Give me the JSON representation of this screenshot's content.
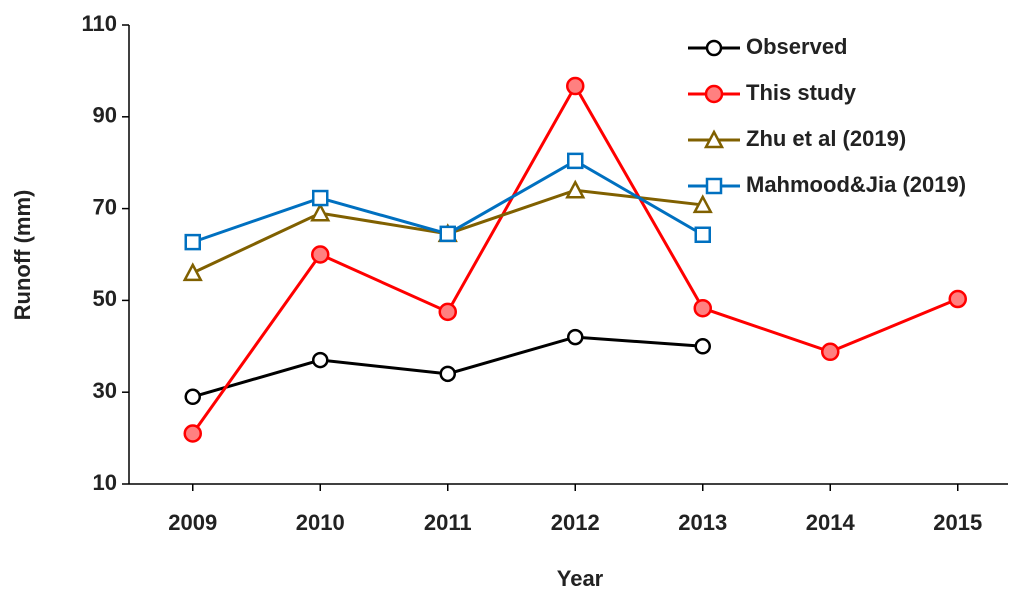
{
  "chart_data": {
    "type": "line",
    "x_label": "Year",
    "y_label": "Runoff (mm)",
    "categories": [
      "2009",
      "2010",
      "2011",
      "2012",
      "2013",
      "2014",
      "2015"
    ],
    "ylim": [
      10,
      110
    ],
    "yticks": [
      10,
      30,
      50,
      70,
      90,
      110
    ],
    "grid": false,
    "legend": "upper-right",
    "series": [
      {
        "name": "Observed",
        "color": "#000000",
        "marker": "circle-open",
        "values": [
          29,
          37,
          34,
          42,
          40,
          null,
          null
        ]
      },
      {
        "name": "This study",
        "color": "#ff0000",
        "marker": "circle-filled",
        "values": [
          21,
          60,
          47.5,
          96.7,
          48.3,
          38.8,
          50.3
        ]
      },
      {
        "name": "Zhu et al (2019)",
        "color": "#806000",
        "marker": "triangle",
        "values": [
          56,
          69,
          64.5,
          74,
          70.8,
          null,
          null
        ]
      },
      {
        "name": "Mahmood&Jia (2019)",
        "color": "#0070c0",
        "marker": "square",
        "values": [
          62.7,
          72.3,
          64.5,
          80.4,
          64.3,
          null,
          null
        ]
      }
    ]
  }
}
